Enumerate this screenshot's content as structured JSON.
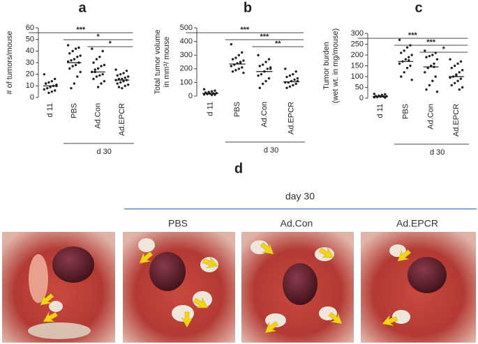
{
  "chart_data": [
    {
      "type": "strip",
      "panel": "a",
      "ylabel": [
        "# of tumors/mouse"
      ],
      "categories": [
        "d 11",
        "PBS",
        "Ad.Con",
        "Ad.EPCR"
      ],
      "group_label": "d 30",
      "group_from": 1,
      "values": [
        [
          20,
          16,
          14,
          13,
          12,
          11,
          10,
          9,
          8,
          7,
          6,
          5,
          4,
          12,
          10
        ],
        [
          45,
          43,
          42,
          40,
          38,
          36,
          35,
          33,
          32,
          31,
          30,
          28,
          27,
          25,
          22,
          18,
          12,
          8
        ],
        [
          42,
          40,
          35,
          33,
          30,
          28,
          27,
          25,
          24,
          22,
          20,
          19,
          18,
          16,
          14,
          12,
          9,
          22
        ],
        [
          24,
          23,
          21,
          20,
          19,
          18,
          17,
          16,
          16,
          15,
          15,
          14,
          13,
          12,
          11,
          10,
          8,
          9
        ]
      ],
      "means": [
        10,
        30,
        22,
        15
      ],
      "color": "#222222",
      "ylim": [
        0,
        60
      ],
      "yticks": [
        0,
        10,
        20,
        30,
        40,
        50,
        60
      ],
      "annotations": [
        {
          "text": "***",
          "from": 0,
          "to": 3
        },
        {
          "text": "*",
          "from": 1,
          "to": 3
        },
        {
          "text": "*",
          "from": 2,
          "to": 3
        }
      ]
    },
    {
      "type": "strip",
      "panel": "b",
      "ylabel": [
        "Total tumor volume",
        "in mm³/ mouse"
      ],
      "categories": [
        "d 11",
        "PBS",
        "Ad.Con",
        "Ad.EPCR"
      ],
      "group_label": "d 30",
      "group_from": 1,
      "values": [
        [
          50,
          40,
          35,
          30,
          25,
          22,
          20,
          18,
          15,
          12,
          10,
          8,
          20,
          25
        ],
        [
          380,
          320,
          300,
          280,
          270,
          260,
          250,
          240,
          230,
          220,
          210,
          200,
          190,
          180,
          170,
          240
        ],
        [
          300,
          270,
          250,
          230,
          220,
          210,
          200,
          180,
          160,
          150,
          130,
          110,
          90,
          60,
          200
        ],
        [
          200,
          180,
          160,
          150,
          140,
          130,
          120,
          110,
          100,
          100,
          90,
          80,
          70,
          60,
          110
        ]
      ],
      "means": [
        20,
        235,
        180,
        105
      ],
      "color": "#222222",
      "ylim": [
        0,
        500
      ],
      "yticks": [
        0,
        100,
        200,
        300,
        400,
        500
      ],
      "annotations": [
        {
          "text": "***",
          "from": 0,
          "to": 3
        },
        {
          "text": "***",
          "from": 1,
          "to": 3
        },
        {
          "text": "**",
          "from": 2,
          "to": 3
        }
      ]
    },
    {
      "type": "strip",
      "panel": "c",
      "ylabel": [
        "Tumor burden",
        "(wet wt. in mg/mouse)"
      ],
      "categories": [
        "d 11",
        "PBS",
        "Ad.Con",
        "Ad.EPCR"
      ],
      "group_label": "d 30",
      "group_from": 1,
      "values": [
        [
          20,
          18,
          15,
          12,
          10,
          9,
          8,
          7,
          5,
          4,
          3,
          10
        ],
        [
          270,
          245,
          235,
          220,
          210,
          200,
          190,
          180,
          170,
          160,
          150,
          140,
          120,
          100,
          85,
          175
        ],
        [
          220,
          210,
          200,
          195,
          190,
          180,
          160,
          150,
          140,
          120,
          100,
          80,
          60,
          40,
          30,
          145
        ],
        [
          180,
          170,
          160,
          150,
          140,
          130,
          120,
          110,
          100,
          95,
          90,
          80,
          70,
          60,
          50,
          40,
          105
        ]
      ],
      "means": [
        8,
        170,
        145,
        100
      ],
      "color": "#222222",
      "ylim": [
        0,
        300
      ],
      "yticks": [
        0,
        50,
        100,
        150,
        200,
        250,
        300
      ],
      "annotations": [
        {
          "text": "***",
          "from": 0,
          "to": 3
        },
        {
          "text": "***",
          "from": 1,
          "to": 3
        },
        {
          "text": "*",
          "from": 2,
          "to": 3
        }
      ]
    }
  ],
  "photos": {
    "panel": "d",
    "day_label": "day 30",
    "labels": [
      "PBS",
      "Ad.Con",
      "Ad.EPCR"
    ]
  }
}
